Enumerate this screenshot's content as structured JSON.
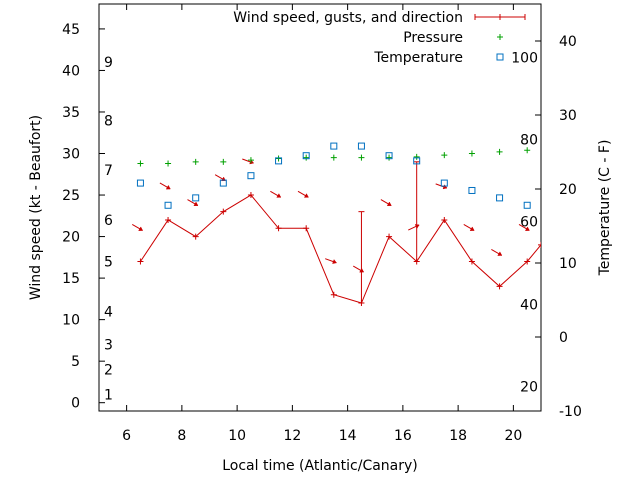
{
  "chart_data": {
    "type": "line",
    "title": "",
    "xlabel": "Local time (Atlantic/Canary)",
    "ylabel": "Wind speed (kt - Beaufort)",
    "y2label": "Temperature (C - F)",
    "xlim": [
      5,
      21
    ],
    "ylim": [
      -1,
      48
    ],
    "y2lim": [
      -10,
      45
    ],
    "x_ticks": [
      6,
      8,
      10,
      12,
      14,
      16,
      18,
      20
    ],
    "y_ticks": [
      0,
      5,
      10,
      15,
      20,
      25,
      30,
      35,
      40,
      45
    ],
    "y2_ticks": [
      -10,
      0,
      10,
      20,
      30,
      40
    ],
    "beaufort_labels": [
      {
        "label": "1",
        "kt": 1
      },
      {
        "label": "2",
        "kt": 4
      },
      {
        "label": "3",
        "kt": 7
      },
      {
        "label": "4",
        "kt": 11
      },
      {
        "label": "5",
        "kt": 17
      },
      {
        "label": "6",
        "kt": 22
      },
      {
        "label": "7",
        "kt": 28
      },
      {
        "label": "8",
        "kt": 34
      },
      {
        "label": "9",
        "kt": 41
      }
    ],
    "fahrenheit_labels": [
      {
        "label": "20",
        "celsius": -6.7
      },
      {
        "label": "40",
        "celsius": 4.4
      },
      {
        "label": "60",
        "celsius": 15.6
      },
      {
        "label": "80",
        "celsius": 26.7
      },
      {
        "label": "100",
        "celsius": 37.8
      }
    ],
    "legend_position": "top-right",
    "series": [
      {
        "name": "Wind speed, gusts, and direction",
        "color": "#cc0000",
        "x": [
          6.5,
          7.5,
          8.5,
          9.5,
          10.5,
          11.5,
          12.5,
          13.5,
          14.5,
          15.5,
          16.5,
          17.5,
          18.5,
          19.5,
          20.5,
          21
        ],
        "y": [
          17,
          22,
          20,
          23,
          25,
          21,
          21,
          13,
          12,
          20,
          17,
          22,
          17,
          14,
          17,
          19
        ],
        "gusts": [
          null,
          null,
          null,
          null,
          null,
          null,
          null,
          null,
          23,
          null,
          29,
          null,
          null,
          null,
          null,
          null
        ],
        "direction_deg": [
          300,
          300,
          300,
          300,
          290,
          300,
          300,
          290,
          300,
          300,
          245,
          290,
          300,
          300,
          300,
          null
        ]
      },
      {
        "name": "Pressure",
        "color": "#00a000",
        "x": [
          6.5,
          7.5,
          8.5,
          9.5,
          10.5,
          11.5,
          12.5,
          13.5,
          14.5,
          15.5,
          16.5,
          17.5,
          18.5,
          19.5,
          20.5
        ],
        "y": [
          28.8,
          28.8,
          29.0,
          29.0,
          29.2,
          29.4,
          29.5,
          29.5,
          29.5,
          29.5,
          29.6,
          29.8,
          30.0,
          30.2,
          30.4
        ]
      },
      {
        "name": "Temperature",
        "color": "#0070c0",
        "x": [
          6.5,
          7.5,
          8.5,
          9.5,
          10.5,
          11.5,
          12.5,
          13.5,
          14.5,
          15.5,
          16.5,
          17.5,
          18.5,
          19.5,
          20.5
        ],
        "y": [
          20.8,
          17.8,
          18.8,
          20.8,
          21.8,
          23.8,
          24.5,
          25.8,
          25.8,
          24.5,
          23.8,
          20.8,
          19.8,
          18.8,
          17.8
        ]
      }
    ]
  }
}
